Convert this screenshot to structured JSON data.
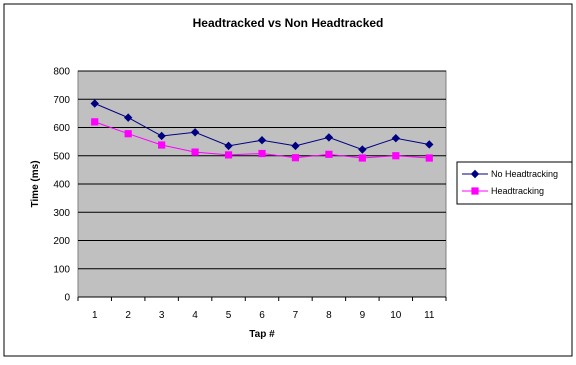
{
  "chart_data": {
    "type": "line",
    "title": "Headtracked vs Non Headtracked",
    "xlabel": "Tap #",
    "ylabel": "Time  (ms)",
    "categories": [
      "1",
      "2",
      "3",
      "4",
      "5",
      "6",
      "7",
      "8",
      "9",
      "10",
      "11"
    ],
    "ylim": [
      0,
      800
    ],
    "yticks": [
      "0",
      "100",
      "200",
      "300",
      "400",
      "500",
      "600",
      "700",
      "800"
    ],
    "grid": true,
    "legend": "right",
    "series": [
      {
        "name": "No Headtracking",
        "color": "#000080",
        "marker": "diamond",
        "values": [
          685,
          635,
          570,
          583,
          535,
          555,
          535,
          565,
          522,
          562,
          540
        ]
      },
      {
        "name": "Headtracking",
        "color": "#FF00FF",
        "marker": "square",
        "values": [
          620,
          578,
          538,
          513,
          503,
          508,
          493,
          505,
          492,
          500,
          492
        ]
      }
    ]
  },
  "colors": {
    "plot_background": "#C0C0C0",
    "gridline": "#000000"
  }
}
